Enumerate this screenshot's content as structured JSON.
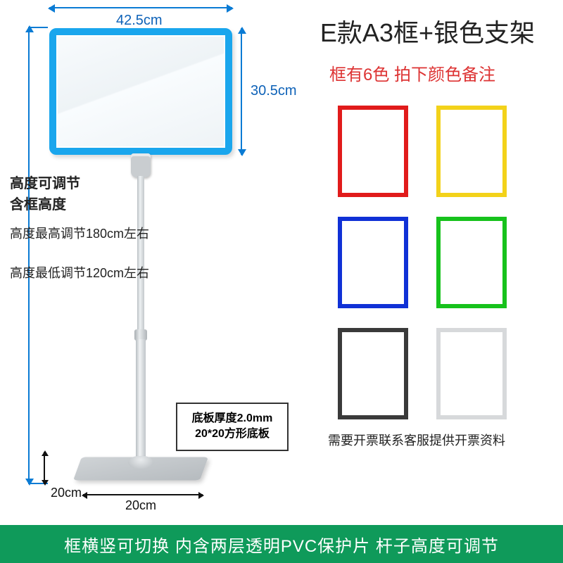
{
  "title": "E款A3框+银色支架",
  "subtitle": "框有6色 拍下颜色备注",
  "dims": {
    "frame_width": "42.5cm",
    "frame_height": "30.5cm",
    "base_side": "20cm"
  },
  "specs": {
    "adj_head1": "高度可调节",
    "adj_head2": "含框高度",
    "max": "高度最高调节180cm左右",
    "min": "高度最低调节120cm左右"
  },
  "base_note": {
    "l1": "底板厚度2.0mm",
    "l2": "20*20方形底板"
  },
  "invoice_note": "需要开票联系客服提供开票资料",
  "banner": "框横竖可切换  内含两层透明PVC保护片  杆子高度可调节",
  "colors": {
    "frame_border": "#1aa6ed",
    "dim_line": "#0a7bd4",
    "banner_bg": "#0f9a5a",
    "sub_color": "#d33a3a"
  },
  "swatches": [
    {
      "name": "red",
      "border": "#e11b1b"
    },
    {
      "name": "yellow",
      "border": "#f3d21a"
    },
    {
      "name": "blue",
      "border": "#1031d6"
    },
    {
      "name": "green",
      "border": "#17c21c"
    },
    {
      "name": "black",
      "border": "#3a3a3a"
    },
    {
      "name": "white",
      "border": "#d7d9db"
    }
  ]
}
